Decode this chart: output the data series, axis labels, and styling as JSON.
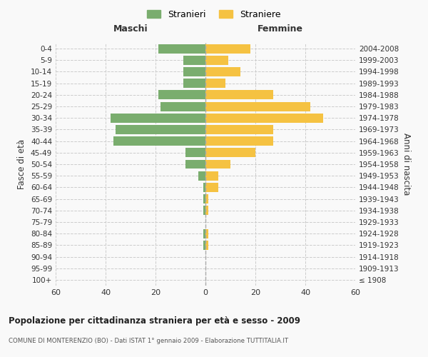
{
  "age_groups": [
    "100+",
    "95-99",
    "90-94",
    "85-89",
    "80-84",
    "75-79",
    "70-74",
    "65-69",
    "60-64",
    "55-59",
    "50-54",
    "45-49",
    "40-44",
    "35-39",
    "30-34",
    "25-29",
    "20-24",
    "15-19",
    "10-14",
    "5-9",
    "0-4"
  ],
  "birth_years": [
    "≤ 1908",
    "1909-1913",
    "1914-1918",
    "1919-1923",
    "1924-1928",
    "1929-1933",
    "1934-1938",
    "1939-1943",
    "1944-1948",
    "1949-1953",
    "1954-1958",
    "1959-1963",
    "1964-1968",
    "1969-1973",
    "1974-1978",
    "1979-1983",
    "1984-1988",
    "1989-1993",
    "1994-1998",
    "1999-2003",
    "2004-2008"
  ],
  "maschi": [
    0,
    0,
    0,
    1,
    1,
    0,
    1,
    1,
    1,
    3,
    8,
    8,
    37,
    36,
    38,
    18,
    19,
    9,
    9,
    9,
    19
  ],
  "femmine": [
    0,
    0,
    0,
    1,
    1,
    0,
    1,
    1,
    5,
    5,
    10,
    20,
    27,
    27,
    47,
    42,
    27,
    8,
    14,
    9,
    18
  ],
  "maschi_color": "#7aad6e",
  "femmine_color": "#f5c242",
  "background_color": "#f9f9f9",
  "title": "Popolazione per cittadinanza straniera per età e sesso - 2009",
  "subtitle": "COMUNE DI MONTERENZIO (BO) - Dati ISTAT 1° gennaio 2009 - Elaborazione TUTTITALIA.IT",
  "ylabel_left": "Fasce di età",
  "ylabel_right": "Anni di nascita",
  "xlabel_left": "Maschi",
  "xlabel_right": "Femmine",
  "legend_maschi": "Stranieri",
  "legend_femmine": "Straniere",
  "xlim": 60,
  "grid_color": "#cccccc",
  "bar_height": 0.8
}
